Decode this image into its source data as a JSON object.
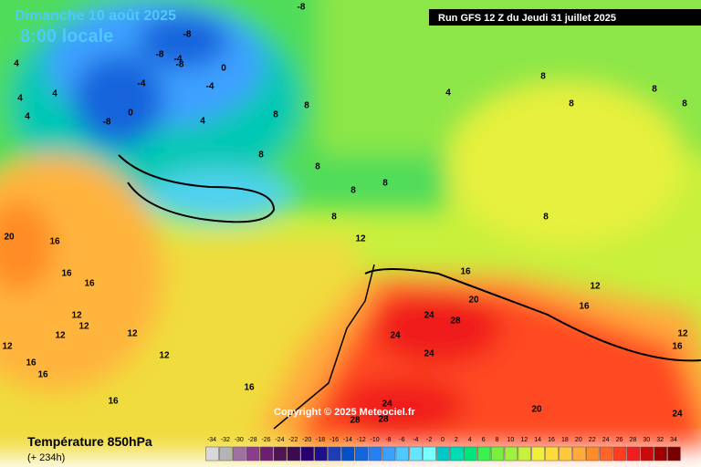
{
  "header": {
    "date": "Dimanche 10 août 2025",
    "time": "8:00 locale",
    "run": "Run GFS 12 Z du Jeudi 31 juillet 2025"
  },
  "copyright": "Copyright © 2025 Meteociel.fr",
  "contour_labels": [
    -8,
    -8,
    -8,
    -4,
    -8,
    -4,
    -4,
    0,
    0,
    -8,
    4,
    4,
    4,
    4,
    4,
    8,
    8,
    8,
    8,
    8,
    8,
    8,
    12,
    16,
    20,
    24,
    28,
    24,
    24,
    4,
    8,
    8,
    8,
    8,
    8,
    12,
    16,
    16,
    12,
    20,
    16,
    16,
    16,
    12,
    12,
    12,
    12,
    12,
    12,
    16,
    16,
    16,
    16,
    24,
    28,
    28,
    20,
    24
  ],
  "legend": {
    "title": "Température 850hPa",
    "subtitle": "(+ 234h)",
    "levels": [
      -34,
      -32,
      -30,
      -28,
      -26,
      -24,
      -22,
      -20,
      -18,
      -16,
      -14,
      -12,
      -10,
      -8,
      -6,
      -4,
      -2,
      0,
      2,
      4,
      6,
      8,
      10,
      12,
      14,
      16,
      18,
      20,
      22,
      24,
      26,
      28,
      30,
      32,
      34
    ],
    "colors": [
      "#d8d8d8",
      "#b4b4b4",
      "#a070a0",
      "#8c3c8c",
      "#6e1e6e",
      "#501450",
      "#3c0a50",
      "#28006e",
      "#1e0f8c",
      "#1e3cb4",
      "#0050c8",
      "#1464dc",
      "#2880f0",
      "#3ca0ff",
      "#50c8ff",
      "#64e6ff",
      "#78ffff",
      "#00c8c8",
      "#00dcb4",
      "#00e678",
      "#3cf050",
      "#78f03c",
      "#a0f03c",
      "#c8f03c",
      "#f0f03c",
      "#ffdc3c",
      "#ffc83c",
      "#ffaa3c",
      "#ff8c28",
      "#ff6428",
      "#ff3c1e",
      "#f01e1e",
      "#c80a0a",
      "#a00000",
      "#780000"
    ]
  }
}
